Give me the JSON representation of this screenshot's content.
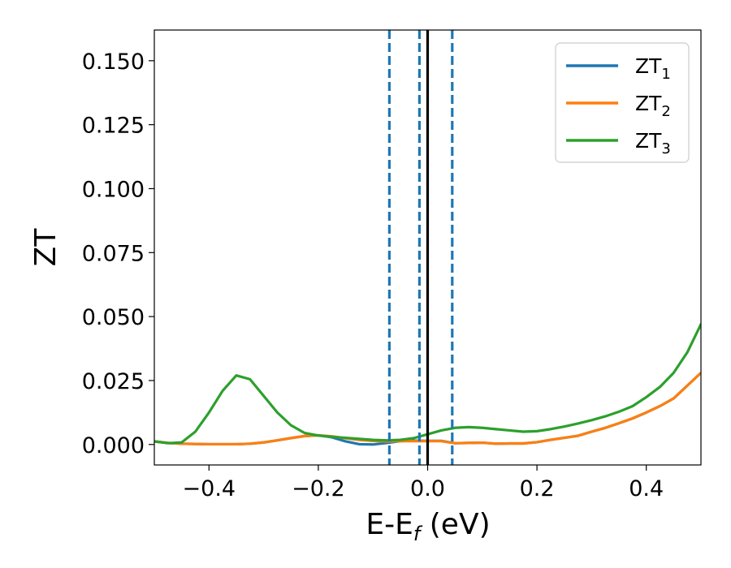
{
  "chart_data": {
    "type": "line",
    "xlabel": "E-E",
    "xlabel_sub": "f",
    "xlabel_unit": " (eV)",
    "ylabel": "ZT",
    "xlim": [
      -0.5,
      0.5
    ],
    "ylim": [
      -0.008,
      0.162
    ],
    "x_ticks": [
      -0.4,
      -0.2,
      0.0,
      0.2,
      0.4
    ],
    "x_tick_labels": [
      "−0.4",
      "−0.2",
      "0.0",
      "0.2",
      "0.4"
    ],
    "y_ticks": [
      0.0,
      0.025,
      0.05,
      0.075,
      0.1,
      0.125,
      0.15
    ],
    "y_tick_labels": [
      "0.000",
      "0.025",
      "0.050",
      "0.075",
      "0.100",
      "0.125",
      "0.150"
    ],
    "grid": false,
    "legend_position": "top-right",
    "colors": {
      "series1": "#1f77b4",
      "series2": "#ff7f0e",
      "series3": "#2ca02c",
      "fermi": "#000000"
    },
    "vlines": [
      {
        "x": -0.07,
        "style": "dashed",
        "color": "#1f77b4"
      },
      {
        "x": -0.015,
        "style": "dashed",
        "color": "#1f77b4"
      },
      {
        "x": 0.0,
        "style": "solid",
        "color": "#000000"
      },
      {
        "x": 0.045,
        "style": "dashed",
        "color": "#1f77b4"
      }
    ],
    "x": [
      -0.5,
      -0.475,
      -0.45,
      -0.425,
      -0.4,
      -0.375,
      -0.35,
      -0.325,
      -0.3,
      -0.275,
      -0.25,
      -0.225,
      -0.2,
      -0.175,
      -0.15,
      -0.125,
      -0.1,
      -0.075,
      -0.05,
      -0.025,
      0.0,
      0.025,
      0.05,
      0.075,
      0.1,
      0.125,
      0.15,
      0.175,
      0.2,
      0.225,
      0.25,
      0.275,
      0.3,
      0.325,
      0.35,
      0.375,
      0.4,
      0.425,
      0.45,
      0.475,
      0.5
    ],
    "series": [
      {
        "name": "ZT",
        "name_sub": "1",
        "values": [
          0.0012,
          0.0006,
          0.0003,
          0.0002,
          0.0001,
          0.0001,
          0.0001,
          0.0003,
          0.0008,
          0.0016,
          0.0025,
          0.0033,
          0.0036,
          0.0028,
          0.0012,
          0.0001,
          0.0,
          0.0006,
          0.0013,
          0.0015,
          0.0014,
          0.0014,
          0.0005,
          0.0006,
          0.0007,
          0.0003,
          0.0004,
          0.0004,
          0.0009,
          0.0018,
          0.0026,
          0.0034,
          0.005,
          0.0065,
          0.0083,
          0.0102,
          0.0125,
          0.015,
          0.018,
          0.023,
          0.028
        ]
      },
      {
        "name": "ZT",
        "name_sub": "2",
        "values": [
          0.0012,
          0.0006,
          0.0003,
          0.0002,
          0.0001,
          0.0001,
          0.0001,
          0.0003,
          0.0008,
          0.0016,
          0.0025,
          0.0033,
          0.0036,
          0.0032,
          0.0024,
          0.0018,
          0.0014,
          0.0012,
          0.0013,
          0.0013,
          0.0013,
          0.0013,
          0.0005,
          0.0006,
          0.0007,
          0.0003,
          0.0004,
          0.0004,
          0.0009,
          0.0018,
          0.0026,
          0.0034,
          0.005,
          0.0065,
          0.0083,
          0.0102,
          0.0125,
          0.015,
          0.018,
          0.023,
          0.028
        ]
      },
      {
        "name": "ZT",
        "name_sub": "3",
        "values": [
          0.0012,
          0.0005,
          0.0008,
          0.005,
          0.0125,
          0.021,
          0.027,
          0.0255,
          0.019,
          0.0125,
          0.0075,
          0.0045,
          0.0035,
          0.003,
          0.0026,
          0.0022,
          0.0018,
          0.0016,
          0.0018,
          0.0025,
          0.004,
          0.0055,
          0.0065,
          0.0068,
          0.0065,
          0.006,
          0.0055,
          0.005,
          0.0052,
          0.006,
          0.007,
          0.0082,
          0.0095,
          0.011,
          0.0128,
          0.015,
          0.0185,
          0.0225,
          0.028,
          0.036,
          0.047
        ]
      }
    ]
  }
}
